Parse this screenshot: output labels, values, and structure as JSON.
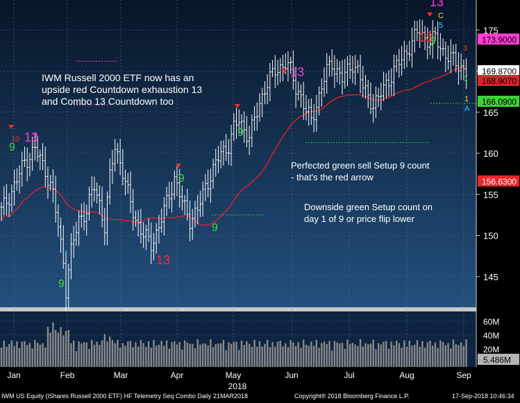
{
  "chart_data": {
    "type": "candlestick",
    "price_axis": {
      "ticks": [
        145,
        150,
        155,
        160,
        165,
        170,
        175
      ],
      "range": [
        141.5,
        177.5
      ]
    },
    "volume_axis": {
      "ticks": [
        "60M",
        "40M",
        "20M"
      ]
    },
    "month_labels": [
      "Jan",
      "Feb",
      "Mar",
      "Apr",
      "May",
      "Jun",
      "Jul",
      "Aug",
      "Sep"
    ],
    "year_label": "2018",
    "price_tags": [
      {
        "value": 173.9,
        "label": "173.9000",
        "bg": "#ff3bd8",
        "fg": "#000000"
      },
      {
        "value": 169.87,
        "label": "169.8700",
        "bg": "#ffffff",
        "fg": "#000000"
      },
      {
        "value": 168.907,
        "label": "168.9070",
        "bg": "#d8252b",
        "fg": "#000000"
      },
      {
        "value": 166.09,
        "label": "166.0900",
        "bg": "#3fcf3a",
        "fg": "#000000"
      },
      {
        "value": 156.63,
        "label": "156.6300",
        "bg": "#e8262b",
        "fg": "#ffffff"
      }
    ],
    "volume_tag": {
      "label": "5.486M"
    },
    "annotations": [
      "IWM Russell 2000 ETF now has an upside red Countdown exhaustion 13 and Combo 13 Countdown too",
      "Perfected green sell Setup 9 count - that's the red arrow",
      "Downside green Setup count on day 1 of 9 or price flip lower"
    ],
    "colors": {
      "background_top": "#0a1a33",
      "background_bottom": "#1f4a78",
      "bars": "#ffffff",
      "moving_average": "#e0202a",
      "setup_count": "#3fdd3a",
      "countdown": "#ff2a2a",
      "combo": "#ff3bd8",
      "volume": "#8a8a8a"
    }
  },
  "footer": {
    "left": "IWM US Equity (iShares Russell 2000 ETF) HF Telemetry Seq Combo  Daily 21MAR2018",
    "center": "Copyright® 2018 Bloomberg Finance L.P.",
    "right": "17-Sep-2018 10:46:34"
  }
}
